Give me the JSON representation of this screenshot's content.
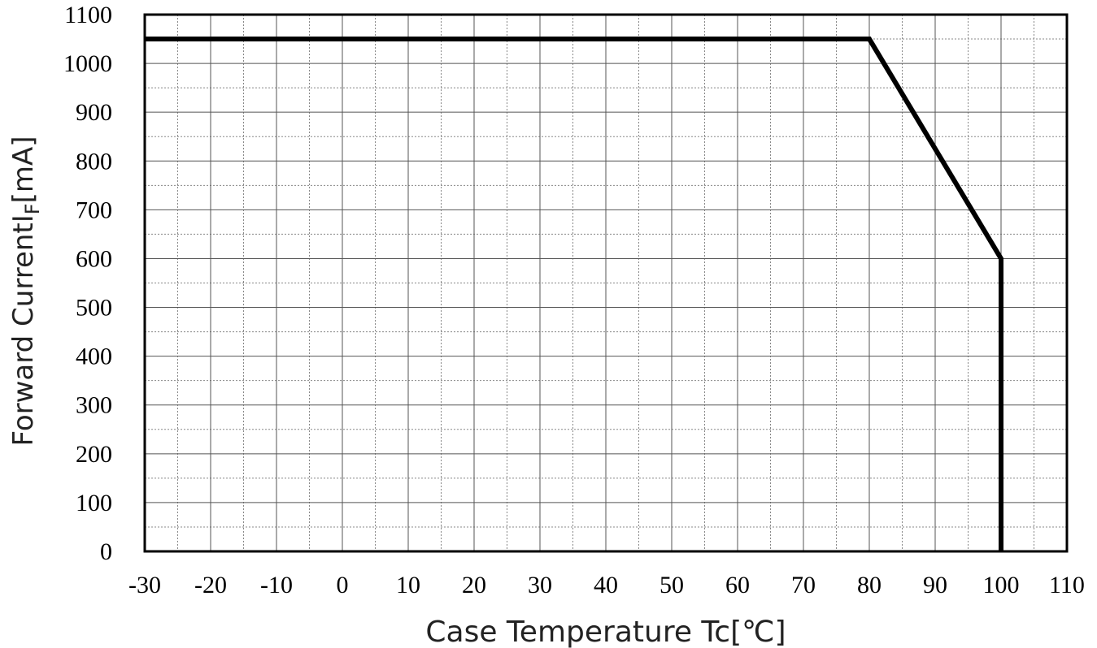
{
  "chart_data": {
    "type": "line",
    "xlabel": "Case Temperature Tc[℃]",
    "ylabel": {
      "main": "Forward Current",
      "symbol": "I",
      "subscript": "F",
      "unit": "[mA]"
    },
    "xlim": [
      -30,
      110
    ],
    "ylim": [
      0,
      1100
    ],
    "x_ticks": [
      "-30",
      "-20",
      "-10",
      "0",
      "10",
      "20",
      "30",
      "40",
      "50",
      "60",
      "70",
      "80",
      "90",
      "100",
      "110"
    ],
    "y_ticks": [
      "0",
      "100",
      "200",
      "300",
      "400",
      "500",
      "600",
      "700",
      "800",
      "900",
      "1000",
      "1100"
    ],
    "grid": true,
    "minor_grid": true,
    "line_color": "#000000",
    "series": [
      {
        "x": [
          -30,
          80,
          100,
          100
        ],
        "y": [
          1050,
          1050,
          600,
          0
        ]
      }
    ]
  }
}
